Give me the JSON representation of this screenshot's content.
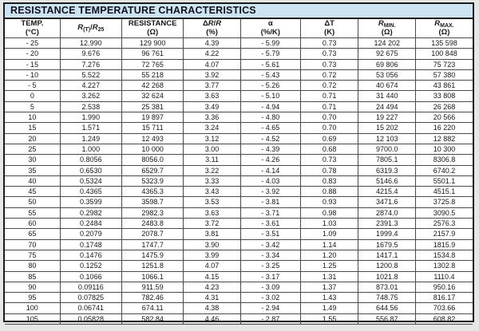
{
  "title": "RESISTANCE TEMPERATURE CHARACTERISTICS",
  "colors": {
    "title_bar_bg": "#cde3f1",
    "title_text": "#10131c",
    "border_dark": "#1c1c1c",
    "grid_line": "#4a4a4a",
    "page_bg": "#e6e6e6",
    "cell_bg": "#ffffff"
  },
  "table": {
    "columns": [
      {
        "name": "temp",
        "l1": [
          {
            "t": "TEMP."
          }
        ],
        "l2": "(°C)"
      },
      {
        "name": "ratio",
        "l1": [
          {
            "t": "R",
            "i": true
          },
          {
            "t": "(T)",
            "s": true
          },
          {
            "t": "/"
          },
          {
            "t": "R",
            "i": true
          },
          {
            "t": "25",
            "s": true
          }
        ],
        "l2": ""
      },
      {
        "name": "resistance",
        "l1": [
          {
            "t": "RESISTANCE"
          }
        ],
        "l2": "(Ω)"
      },
      {
        "name": "delta-r-r",
        "l1": [
          {
            "t": "Δ"
          },
          {
            "t": "R",
            "i": true
          },
          {
            "t": "/"
          },
          {
            "t": "R",
            "i": true
          }
        ],
        "l2": "(%)"
      },
      {
        "name": "alpha",
        "l1": [
          {
            "t": "α"
          }
        ],
        "l2": "(%/K)"
      },
      {
        "name": "delta-t",
        "l1": [
          {
            "t": "ΔT"
          }
        ],
        "l2": "(K)"
      },
      {
        "name": "r-min",
        "l1": [
          {
            "t": "R",
            "i": true
          },
          {
            "t": "MIN.",
            "s": true
          }
        ],
        "l2": "(Ω)"
      },
      {
        "name": "r-max",
        "l1": [
          {
            "t": "R",
            "i": true
          },
          {
            "t": "MAX.",
            "s": true
          }
        ],
        "l2": "(Ω)"
      }
    ],
    "rows": [
      [
        "- 25",
        "12.990",
        "129 900",
        "4.39",
        "- 5.99",
        "0.73",
        "124 202",
        "135 598"
      ],
      [
        "- 20",
        "9.676",
        "96 761",
        "4.22",
        "- 5.79",
        "0.73",
        "92 675",
        "100 848"
      ],
      [
        "- 15",
        "7.276",
        "72 765",
        "4.07",
        "- 5.61",
        "0.73",
        "69 806",
        "75 723"
      ],
      [
        "- 10",
        "5.522",
        "55 218",
        "3.92",
        "- 5.43",
        "0.72",
        "53 056",
        "57 380"
      ],
      [
        "- 5",
        "4.227",
        "42 268",
        "3.77",
        "- 5.26",
        "0.72",
        "40 674",
        "43 861"
      ],
      [
        "0",
        "3.262",
        "32 624",
        "3.63",
        "- 5.10",
        "0.71",
        "31 440",
        "33 808"
      ],
      [
        "5",
        "2.538",
        "25 381",
        "3.49",
        "- 4.94",
        "0.71",
        "24 494",
        "26 268"
      ],
      [
        "10",
        "1.990",
        "19 897",
        "3.36",
        "- 4.80",
        "0.70",
        "19 227",
        "20 566"
      ],
      [
        "15",
        "1.571",
        "15 711",
        "3.24",
        "- 4.65",
        "0.70",
        "15 202",
        "16 220"
      ],
      [
        "20",
        "1.249",
        "12 493",
        "3.12",
        "- 4.52",
        "0.69",
        "12 103",
        "12 882"
      ],
      [
        "25",
        "1.000",
        "10 000",
        "3.00",
        "- 4.39",
        "0.68",
        "9700.0",
        "10 300"
      ],
      [
        "30",
        "0.8056",
        "8056.0",
        "3.11",
        "- 4.26",
        "0.73",
        "7805.1",
        "8306.8"
      ],
      [
        "35",
        "0.6530",
        "6529.7",
        "3.22",
        "- 4.14",
        "0.78",
        "6319.3",
        "6740.2"
      ],
      [
        "40",
        "0.5324",
        "5323.9",
        "3.33",
        "- 4.03",
        "0.83",
        "5146.6",
        "5501.1"
      ],
      [
        "45",
        "0.4365",
        "4365.3",
        "3.43",
        "- 3.92",
        "0.88",
        "4215.4",
        "4515.1"
      ],
      [
        "50",
        "0.3599",
        "3598.7",
        "3.53",
        "- 3.81",
        "0.93",
        "3471.6",
        "3725.8"
      ],
      [
        "55",
        "0.2982",
        "2982.3",
        "3.63",
        "- 3.71",
        "0.98",
        "2874.0",
        "3090.5"
      ],
      [
        "60",
        "0.2484",
        "2483.8",
        "3.72",
        "- 3.61",
        "1.03",
        "2391.3",
        "2576.3"
      ],
      [
        "65",
        "0.2079",
        "2078.7",
        "3.81",
        "- 3.51",
        "1.09",
        "1999.4",
        "2157.9"
      ],
      [
        "70",
        "0.1748",
        "1747.7",
        "3.90",
        "- 3.42",
        "1.14",
        "1679.5",
        "1815.9"
      ],
      [
        "75",
        "0.1476",
        "1475.9",
        "3.99",
        "- 3.34",
        "1.20",
        "1417.1",
        "1534.8"
      ],
      [
        "80",
        "0.1252",
        "1251.8",
        "4.07",
        "- 3.25",
        "1.25",
        "1200.8",
        "1302.8"
      ],
      [
        "85",
        "0.1066",
        "1066.1",
        "4.15",
        "- 3.17",
        "1.31",
        "1021.8",
        "1110.4"
      ],
      [
        "90",
        "0.09116",
        "911.59",
        "4.23",
        "- 3.09",
        "1.37",
        "873.01",
        "950.16"
      ],
      [
        "95",
        "0.07825",
        "782.46",
        "4.31",
        "- 3.02",
        "1.43",
        "748.75",
        "816.17"
      ],
      [
        "100",
        "0.06741",
        "674.11",
        "4.38",
        "- 2.94",
        "1.49",
        "644.56",
        "703.66"
      ],
      [
        "105",
        "0.05828",
        "582.84",
        "4.46",
        "- 2.87",
        "1.55",
        "556.87",
        "608.82"
      ]
    ]
  }
}
